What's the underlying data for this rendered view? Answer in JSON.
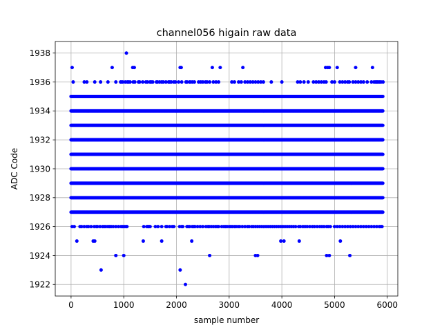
{
  "chart_data": {
    "type": "scatter",
    "title": "channel056 higain raw data",
    "xlabel": "sample number",
    "ylabel": "ADC Code",
    "xlim": [
      -300,
      6200
    ],
    "ylim": [
      1921.2,
      1938.8
    ],
    "xticks": [
      0,
      1000,
      2000,
      3000,
      4000,
      5000,
      6000
    ],
    "yticks": [
      1922,
      1924,
      1926,
      1928,
      1930,
      1932,
      1934,
      1936,
      1938
    ],
    "grid": true,
    "marker_color": "#0000ff",
    "dense_bands": {
      "x_range": [
        0,
        5920
      ],
      "y_values": [
        1927,
        1928,
        1929,
        1930,
        1931,
        1932,
        1933,
        1934,
        1935
      ]
    },
    "sparse_points": {
      "1938": [
        1050
      ],
      "1937": [
        20,
        780,
        1170,
        1200,
        2070,
        2090,
        2680,
        2830,
        3260,
        4830,
        4870,
        4900,
        5050,
        5400,
        5720
      ],
      "1936": [
        40,
        250,
        300,
        450,
        560,
        700,
        850,
        940,
        950,
        980,
        1030,
        1070,
        1090,
        1120,
        1180,
        1210,
        1280,
        1300,
        1360,
        1420,
        1450,
        1500,
        1520,
        1550,
        1620,
        1640,
        1680,
        1720,
        1750,
        1800,
        1850,
        1870,
        1900,
        1950,
        1980,
        2040,
        2100,
        2180,
        2200,
        2250,
        2260,
        2300,
        2340,
        2420,
        2460,
        2500,
        2550,
        2580,
        2630,
        2700,
        2750,
        2800,
        3050,
        3100,
        3180,
        3230,
        3300,
        3350,
        3400,
        3450,
        3500,
        3550,
        3600,
        3650,
        3800,
        4000,
        4300,
        4350,
        4420,
        4500,
        4600,
        4650,
        4700,
        4750,
        4800,
        4840,
        4950,
        5000,
        5100,
        5150,
        5200,
        5250,
        5280,
        5350,
        5400,
        5450,
        5500,
        5550,
        5620,
        5700,
        5750,
        5780,
        5800,
        5820,
        5850,
        5880,
        5920
      ],
      "1926": [
        20,
        60,
        170,
        200,
        250,
        300,
        330,
        380,
        440,
        480,
        500,
        550,
        600,
        630,
        660,
        700,
        730,
        760,
        800,
        850,
        900,
        950,
        980,
        1010,
        1040,
        1060,
        1380,
        1440,
        1460,
        1480,
        1500,
        1600,
        1650,
        1720,
        1800,
        1820,
        1870,
        1920,
        1950,
        2060,
        2100,
        2120,
        2200,
        2220,
        2250,
        2300,
        2330,
        2350,
        2400,
        2450,
        2500,
        2560,
        2600,
        2620,
        2660,
        2700,
        2740,
        2770,
        2800,
        2860,
        2900,
        2930,
        2960,
        3000,
        3030,
        3060,
        3100,
        3130,
        3170,
        3200,
        3250,
        3300,
        3350,
        3380,
        3430,
        3460,
        3500,
        3540,
        3580,
        3620,
        3660,
        3700,
        3740,
        3780,
        3820,
        3860,
        3900,
        3940,
        3980,
        4020,
        4060,
        4100,
        4140,
        4180,
        4220,
        4260,
        4320,
        4350,
        4400,
        4440,
        4480,
        4530,
        4580,
        4620,
        4670,
        4720,
        4760,
        4800,
        4850,
        4880,
        4920,
        5000,
        5050,
        5100,
        5150,
        5200,
        5250,
        5300,
        5350,
        5400,
        5450,
        5500,
        5550,
        5600,
        5650,
        5700,
        5750,
        5800,
        5850,
        5880,
        5900
      ],
      "1925": [
        110,
        420,
        450,
        1370,
        1720,
        2290,
        3980,
        4040,
        4330,
        5110
      ],
      "1924": [
        850,
        1000,
        2630,
        3500,
        3540,
        4850,
        4900,
        5290
      ],
      "1923": [
        570,
        2070
      ],
      "1922": [
        2170
      ]
    }
  }
}
